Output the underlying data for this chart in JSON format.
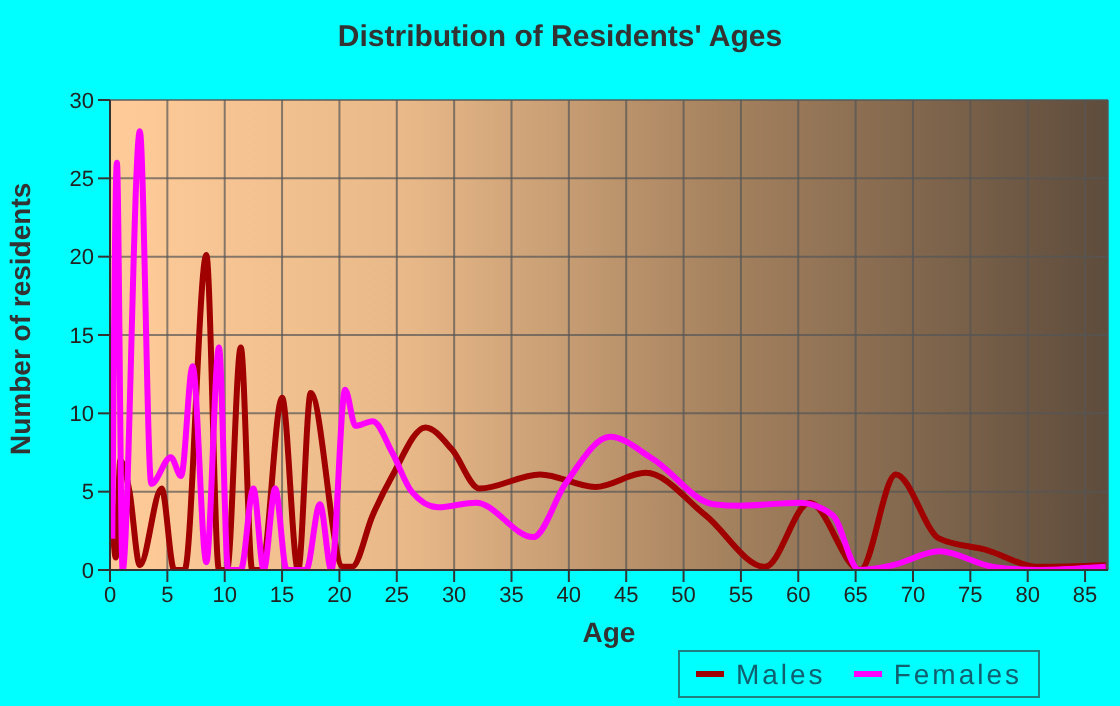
{
  "chart_data": {
    "type": "line",
    "title": "Distribution of Residents' Ages",
    "xlabel": "Age",
    "ylabel": "Number of residents",
    "xlim": [
      0,
      87
    ],
    "xticks": [
      0,
      5,
      10,
      15,
      20,
      25,
      30,
      35,
      40,
      45,
      50,
      55,
      60,
      65,
      70,
      75,
      80,
      85
    ],
    "ylim": [
      0,
      30
    ],
    "yticks": [
      0,
      5,
      10,
      15,
      20,
      25,
      30
    ],
    "grid": true,
    "legend": "bottom right",
    "marker": "none",
    "line_style": "solid",
    "series": [
      {
        "name": "Males",
        "color": "#a00000",
        "x": [
          0,
          0.5,
          0.9,
          1.7,
          2.6,
          4.5,
          5.6,
          6.5,
          8.4,
          9.5,
          10.2,
          11.4,
          12.4,
          13.2,
          15,
          16.4,
          17.5,
          20.3,
          21.1,
          22.9,
          24.6,
          27.5,
          29.8,
          32.2,
          37.5,
          42.3,
          46.7,
          51.9,
          57.1,
          61,
          65.4,
          68.5,
          72.3,
          76.3,
          81,
          86.8
        ],
        "values": [
          7.2,
          0.8,
          7,
          5,
          0.3,
          5.2,
          0,
          0,
          20.1,
          0,
          0,
          14.2,
          0,
          0,
          11,
          0,
          11.3,
          0.2,
          0.2,
          3.5,
          6,
          9.1,
          7.7,
          5.2,
          6.1,
          5.3,
          6.2,
          3.5,
          0.2,
          4.3,
          0,
          6.1,
          2,
          1.3,
          0.2,
          0.3
        ]
      },
      {
        "name": "Females",
        "color": "#ff00ff",
        "x": [
          0.2,
          0.6,
          1.1,
          2.6,
          3.6,
          5.3,
          6.2,
          7.2,
          8.4,
          9.5,
          10.3,
          11.4,
          12.5,
          13.4,
          14.4,
          15.4,
          17.1,
          18.3,
          19.3,
          20.5,
          21.4,
          22.9,
          24.6,
          26.3,
          28.6,
          31.9,
          36.9,
          39.7,
          43.6,
          47.3,
          52.6,
          54.9,
          60.1,
          63,
          65.3,
          68.2,
          72.3,
          77,
          81,
          86.8
        ],
        "values": [
          2,
          26,
          0,
          28,
          5.5,
          7.2,
          6,
          13,
          0.5,
          14.2,
          0,
          0,
          5.2,
          0,
          5.2,
          0,
          0,
          4.2,
          0,
          11.5,
          9.2,
          9.5,
          7.5,
          5,
          4,
          4.3,
          2.1,
          5.5,
          8.5,
          7.1,
          4.2,
          4.1,
          4.3,
          3.5,
          0,
          0.3,
          1.2,
          0.2,
          0,
          0.2
        ]
      }
    ]
  }
}
